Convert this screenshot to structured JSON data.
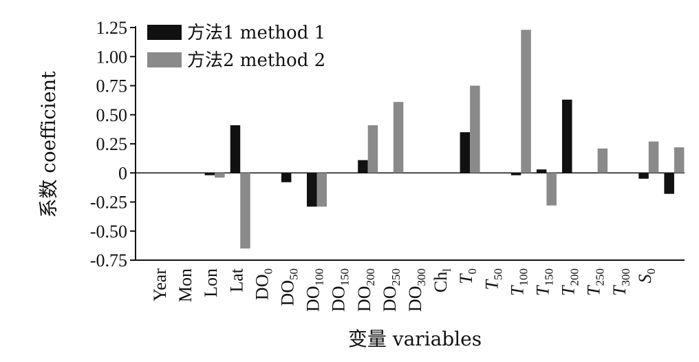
{
  "chart_data": {
    "type": "bar",
    "title": "",
    "xlabel": "变量 variables",
    "ylabel": "系数 coefficient",
    "ylim": [
      -0.75,
      1.25
    ],
    "yticks": [
      "1.25",
      "1.00",
      "0.75",
      "0.50",
      "0.25",
      "0",
      "-0.25",
      "-0.50",
      "-0.75"
    ],
    "ytick_values": [
      1.25,
      1.0,
      0.75,
      0.5,
      0.25,
      0,
      -0.25,
      -0.5,
      -0.75
    ],
    "categories": [
      {
        "label": "Year",
        "base": "Year",
        "sub": "",
        "italic": false
      },
      {
        "label": "Mon",
        "base": "Mon",
        "sub": "",
        "italic": false
      },
      {
        "label": "Lon",
        "base": "Lon",
        "sub": "",
        "italic": false
      },
      {
        "label": "Lat",
        "base": "Lat",
        "sub": "",
        "italic": false
      },
      {
        "label": "DO0",
        "base": "DO",
        "sub": "0",
        "italic": false
      },
      {
        "label": "DO50",
        "base": "DO",
        "sub": "50",
        "italic": false
      },
      {
        "label": "DO100",
        "base": "DO",
        "sub": "100",
        "italic": false
      },
      {
        "label": "DO150",
        "base": "DO",
        "sub": "150",
        "italic": false
      },
      {
        "label": "DO200",
        "base": "DO",
        "sub": "200",
        "italic": false
      },
      {
        "label": "DO250",
        "base": "DO",
        "sub": "250",
        "italic": false
      },
      {
        "label": "DO300",
        "base": "DO",
        "sub": "300",
        "italic": false
      },
      {
        "label": "Chl",
        "base": "Ch",
        "sub": "l",
        "italic": false
      },
      {
        "label": "T0",
        "base": "T",
        "sub": "0",
        "italic": true
      },
      {
        "label": "T50",
        "base": "T",
        "sub": "50",
        "italic": true
      },
      {
        "label": "T100",
        "base": "T",
        "sub": "100",
        "italic": true
      },
      {
        "label": "T150",
        "base": "T",
        "sub": "150",
        "italic": true
      },
      {
        "label": "T200",
        "base": "T",
        "sub": "200",
        "italic": true
      },
      {
        "label": "T250",
        "base": "T",
        "sub": "250",
        "italic": true
      },
      {
        "label": "T300",
        "base": "T",
        "sub": "300",
        "italic": true
      },
      {
        "label": "S0",
        "base": "S",
        "sub": "0",
        "italic": true
      }
    ],
    "series": [
      {
        "name": "方法1 method 1",
        "color": "#111111",
        "values": [
          0,
          -0.02,
          0.41,
          0,
          -0.08,
          -0.29,
          0,
          0.11,
          0,
          0,
          0,
          0.35,
          0,
          -0.02,
          0.03,
          0.63,
          0,
          0,
          -0.05,
          -0.18
        ]
      },
      {
        "name": "方法2 method 2",
        "color": "#8a8a8a",
        "values": [
          0,
          -0.04,
          -0.65,
          0,
          0,
          -0.29,
          0,
          0.41,
          0.61,
          0,
          0,
          0.75,
          0,
          1.23,
          -0.28,
          0,
          0.21,
          0,
          0.27,
          0.22
        ]
      }
    ],
    "legend_position": "top-left",
    "grid": false
  }
}
